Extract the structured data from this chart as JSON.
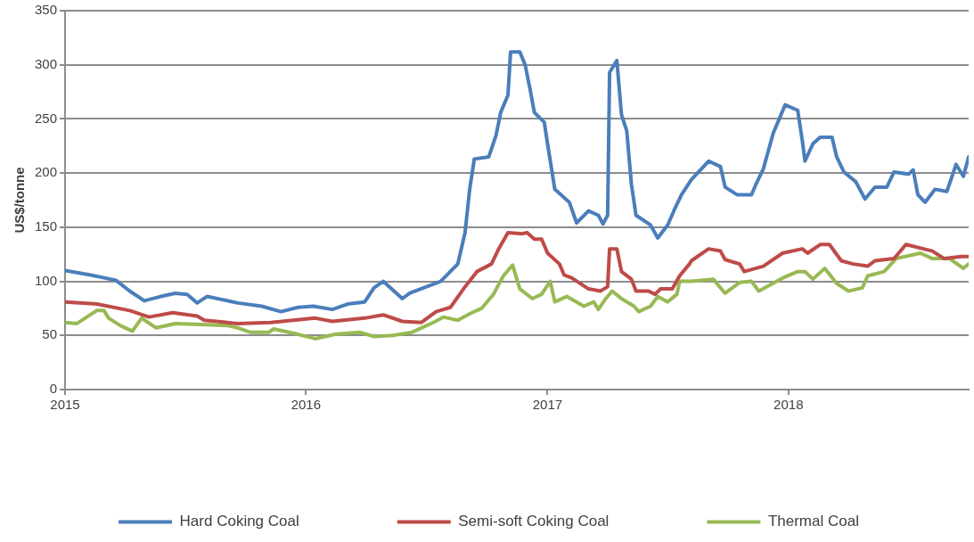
{
  "chart_data": {
    "type": "line",
    "ylabel": "US$/tonne",
    "xlim": [
      "2015-01-01",
      "2018-10-01"
    ],
    "xticks": [
      {
        "value": "2015-01-01",
        "label": "2015"
      },
      {
        "value": "2016-01-01",
        "label": "2016"
      },
      {
        "value": "2017-01-01",
        "label": "2017"
      },
      {
        "value": "2018-01-01",
        "label": "2018"
      }
    ],
    "ylim": [
      0,
      350
    ],
    "yticks": [
      0,
      50,
      100,
      150,
      200,
      250,
      300,
      350
    ],
    "grid": "y",
    "legend": "bottom",
    "marker": "none",
    "line_style": "solid",
    "series": [
      {
        "name": "Hard Coking Coal",
        "color": "#4a7ebb",
        "x": [
          "2015-01-01",
          "2015-02-07",
          "2015-03-19",
          "2015-04-09",
          "2015-05-01",
          "2015-05-26",
          "2015-06-17",
          "2015-07-05",
          "2015-07-20",
          "2015-08-04",
          "2015-09-20",
          "2015-10-26",
          "2015-11-24",
          "2015-12-20",
          "2016-01-12",
          "2016-02-10",
          "2016-03-04",
          "2016-03-30",
          "2016-04-13",
          "2016-04-27",
          "2016-05-26",
          "2016-06-06",
          "2016-07-23",
          "2016-08-18",
          "2016-08-29",
          "2016-09-05",
          "2016-09-12",
          "2016-10-04",
          "2016-10-15",
          "2016-10-22",
          "2016-11-02",
          "2016-11-06",
          "2016-11-20",
          "2016-11-28",
          "2016-12-05",
          "2016-12-12",
          "2016-12-27",
          "2017-01-01",
          "2017-01-12",
          "2017-02-03",
          "2017-02-14",
          "2017-03-04",
          "2017-03-19",
          "2017-03-26",
          "2017-04-02",
          "2017-04-05",
          "2017-04-16",
          "2017-04-23",
          "2017-05-01",
          "2017-05-08",
          "2017-05-15",
          "2017-06-06",
          "2017-06-17",
          "2017-07-02",
          "2017-07-12",
          "2017-07-23",
          "2017-08-07",
          "2017-09-02",
          "2017-09-20",
          "2017-09-27",
          "2017-10-15",
          "2017-11-06",
          "2017-11-13",
          "2017-11-24",
          "2017-12-09",
          "2017-12-27",
          "2018-01-15",
          "2018-01-22",
          "2018-01-26",
          "2018-02-07",
          "2018-02-18",
          "2018-03-08",
          "2018-03-15",
          "2018-03-26",
          "2018-04-13",
          "2018-04-27",
          "2018-05-12",
          "2018-05-30",
          "2018-06-10",
          "2018-07-02",
          "2018-07-09",
          "2018-07-16",
          "2018-07-27",
          "2018-08-11",
          "2018-08-29",
          "2018-09-12",
          "2018-09-23",
          "2018-10-01"
        ],
        "values": [
          110,
          106,
          101,
          91,
          82,
          86,
          89,
          88,
          80,
          86,
          80,
          77,
          72,
          76,
          77,
          74,
          79,
          81,
          94,
          100,
          84,
          89,
          100,
          116,
          145,
          185,
          213,
          215,
          235,
          256,
          272,
          312,
          312,
          300,
          279,
          256,
          247,
          227,
          185,
          173,
          154,
          165,
          161,
          153,
          161,
          293,
          304,
          254,
          239,
          190,
          161,
          152,
          140,
          152,
          166,
          180,
          194,
          211,
          206,
          187,
          180,
          180,
          190,
          204,
          237,
          263,
          258,
          230,
          211,
          227,
          233,
          233,
          215,
          201,
          192,
          176,
          187,
          187,
          201,
          199,
          203,
          180,
          173,
          185,
          183,
          208,
          197,
          215
        ]
      },
      {
        "name": "Semi-soft Coking Coal",
        "color": "#be4b48",
        "x": [
          "2015-01-01",
          "2015-02-18",
          "2015-04-09",
          "2015-05-08",
          "2015-06-13",
          "2015-07-20",
          "2015-07-31",
          "2015-09-20",
          "2015-11-09",
          "2016-01-15",
          "2016-02-10",
          "2016-03-30",
          "2016-04-27",
          "2016-05-26",
          "2016-06-24",
          "2016-07-16",
          "2016-08-07",
          "2016-08-29",
          "2016-09-16",
          "2016-10-08",
          "2016-10-19",
          "2016-11-02",
          "2016-11-24",
          "2016-12-01",
          "2016-12-12",
          "2016-12-23",
          "2017-01-01",
          "2017-01-19",
          "2017-01-26",
          "2017-02-07",
          "2017-03-04",
          "2017-03-22",
          "2017-04-02",
          "2017-04-05",
          "2017-04-16",
          "2017-04-23",
          "2017-05-08",
          "2017-05-15",
          "2017-06-03",
          "2017-06-13",
          "2017-06-21",
          "2017-07-09",
          "2017-07-20",
          "2017-08-04",
          "2017-08-07",
          "2017-09-02",
          "2017-09-20",
          "2017-09-27",
          "2017-10-19",
          "2017-10-26",
          "2017-11-24",
          "2017-12-23",
          "2018-01-22",
          "2018-01-30",
          "2018-02-18",
          "2018-03-04",
          "2018-03-22",
          "2018-04-09",
          "2018-05-01",
          "2018-05-12",
          "2018-06-10",
          "2018-06-28",
          "2018-08-07",
          "2018-08-25",
          "2018-09-20",
          "2018-10-01"
        ],
        "values": [
          81,
          79,
          73,
          67,
          71,
          68,
          64,
          61,
          62,
          66,
          63,
          66,
          69,
          63,
          62,
          72,
          76,
          95,
          109,
          116,
          130,
          145,
          144,
          145,
          139,
          139,
          126,
          116,
          106,
          103,
          93,
          91,
          95,
          130,
          130,
          109,
          102,
          91,
          91,
          88,
          93,
          93,
          105,
          116,
          119,
          130,
          128,
          120,
          116,
          109,
          114,
          126,
          130,
          126,
          134,
          134,
          119,
          116,
          114,
          119,
          121,
          134,
          128,
          121,
          123,
          123
        ]
      },
      {
        "name": "Thermal Coal",
        "color": "#98b954",
        "x": [
          "2015-01-01",
          "2015-01-19",
          "2015-02-18",
          "2015-03-01",
          "2015-03-08",
          "2015-03-26",
          "2015-04-13",
          "2015-04-27",
          "2015-05-19",
          "2015-06-17",
          "2015-08-04",
          "2015-09-05",
          "2015-09-20",
          "2015-10-08",
          "2015-11-06",
          "2015-11-13",
          "2015-12-20",
          "2016-01-15",
          "2016-02-14",
          "2016-03-22",
          "2016-04-13",
          "2016-05-12",
          "2016-06-10",
          "2016-07-12",
          "2016-07-27",
          "2016-08-18",
          "2016-09-05",
          "2016-09-23",
          "2016-10-11",
          "2016-10-26",
          "2016-11-09",
          "2016-11-20",
          "2016-12-09",
          "2016-12-23",
          "2017-01-05",
          "2017-01-12",
          "2017-01-30",
          "2017-02-25",
          "2017-03-12",
          "2017-03-19",
          "2017-03-30",
          "2017-04-09",
          "2017-04-23",
          "2017-05-12",
          "2017-05-19",
          "2017-06-06",
          "2017-06-17",
          "2017-07-02",
          "2017-07-16",
          "2017-07-20",
          "2017-08-07",
          "2017-09-09",
          "2017-09-27",
          "2017-10-19",
          "2017-11-06",
          "2017-11-17",
          "2017-12-23",
          "2018-01-15",
          "2018-01-26",
          "2018-02-07",
          "2018-02-25",
          "2018-03-15",
          "2018-04-02",
          "2018-04-23",
          "2018-05-01",
          "2018-05-26",
          "2018-06-13",
          "2018-07-20",
          "2018-08-07",
          "2018-09-02",
          "2018-09-23",
          "2018-10-01"
        ],
        "values": [
          62,
          61,
          73,
          73,
          66,
          59,
          54,
          66,
          57,
          61,
          60,
          59,
          57,
          53,
          53,
          56,
          51,
          47,
          51,
          53,
          49,
          50,
          53,
          62,
          67,
          64,
          70,
          75,
          88,
          105,
          115,
          93,
          84,
          88,
          100,
          81,
          86,
          77,
          81,
          74,
          84,
          91,
          84,
          77,
          72,
          77,
          86,
          81,
          88,
          100,
          100,
          102,
          89,
          99,
          100,
          91,
          103,
          109,
          109,
          102,
          112,
          98,
          91,
          94,
          105,
          109,
          121,
          126,
          121,
          121,
          112,
          116
        ]
      }
    ]
  }
}
